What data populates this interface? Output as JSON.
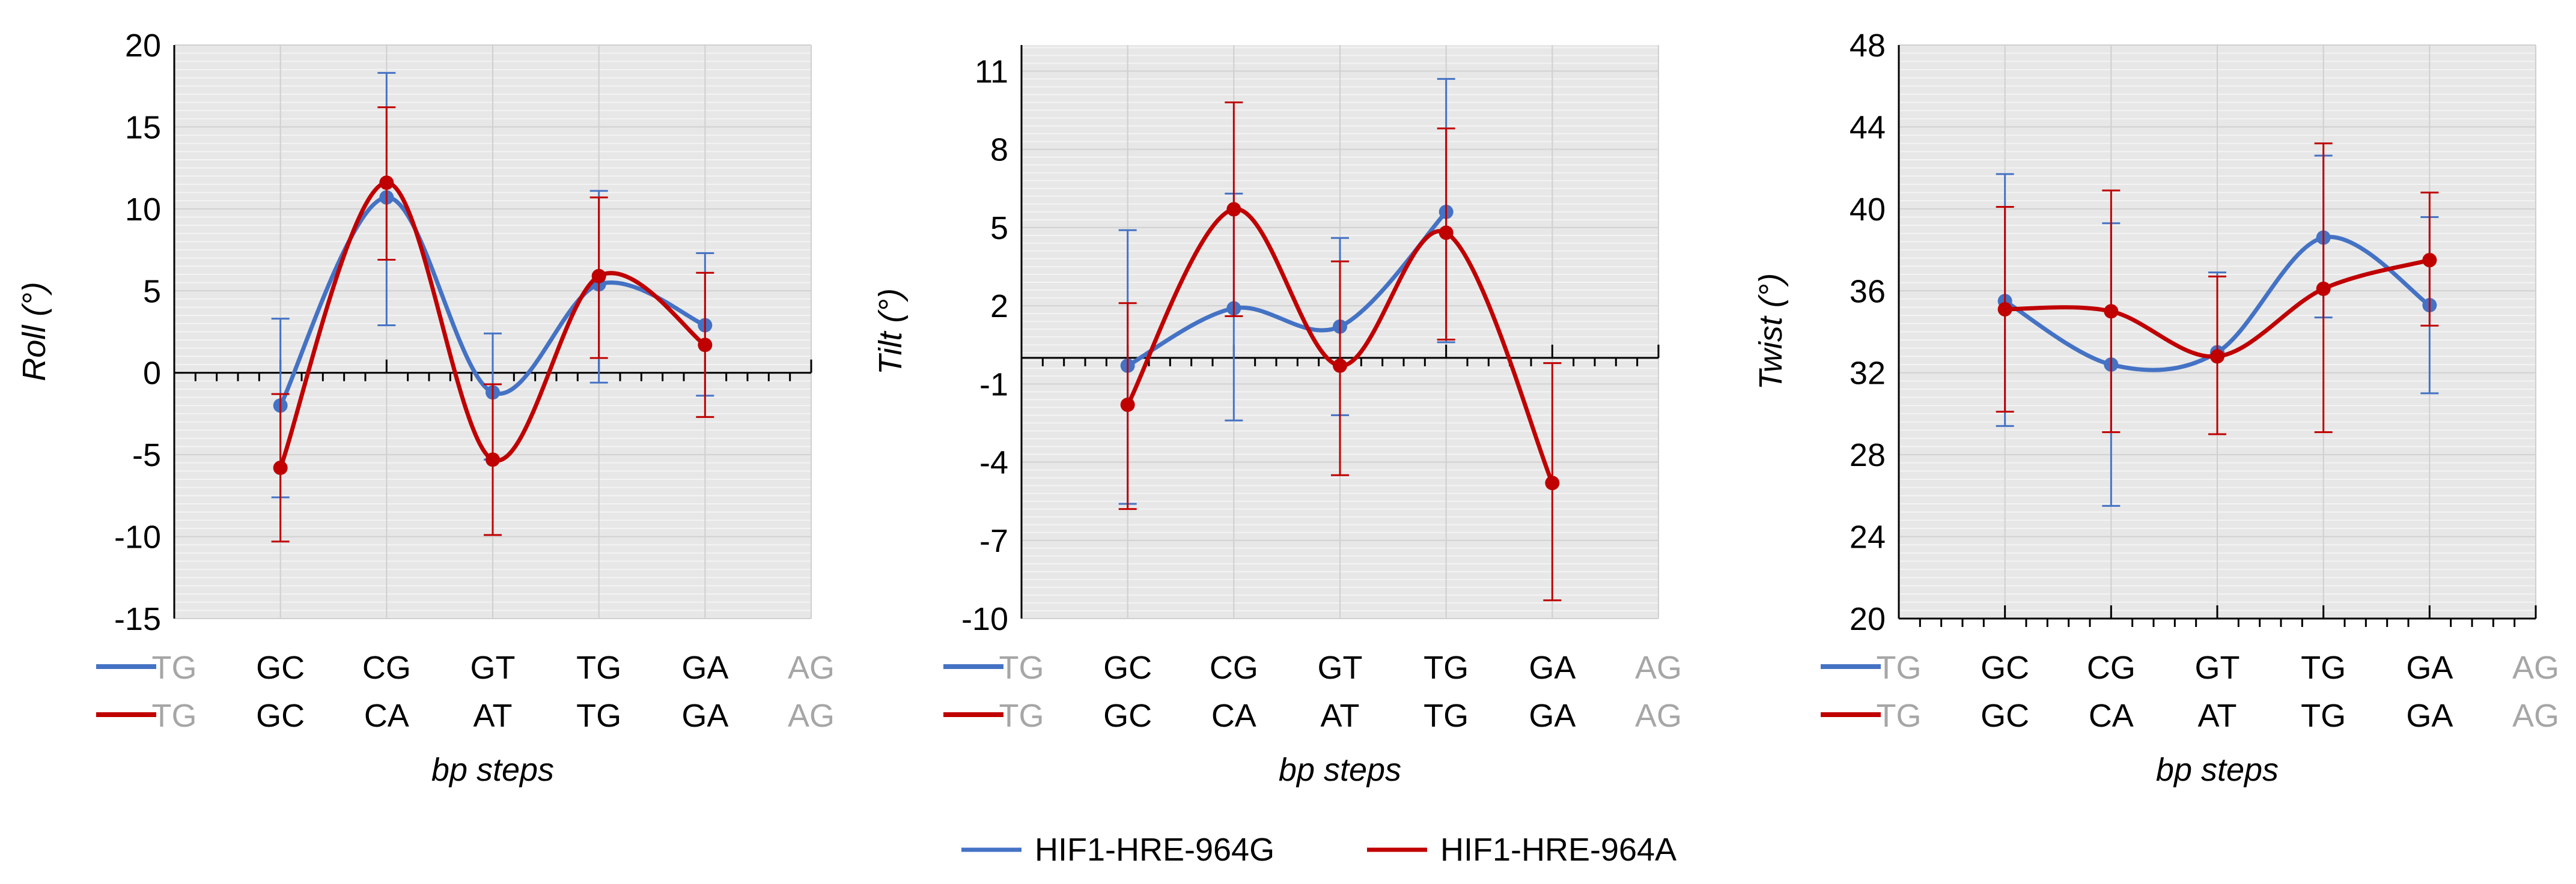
{
  "chart_data": [
    {
      "type": "line",
      "title": "",
      "ylabel": "Roll (°)",
      "xlabel": "bp steps",
      "ylim": [
        -15,
        20
      ],
      "yticks": [
        -15,
        -10,
        -5,
        0,
        5,
        10,
        15,
        20
      ],
      "grid": true,
      "smooth": true,
      "categories_rows": [
        [
          "TG",
          "GC",
          "CG",
          "GT",
          "TG",
          "GA",
          "AG"
        ],
        [
          "TG",
          "GC",
          "CA",
          "AT",
          "TG",
          "GA",
          "AG"
        ]
      ],
      "faded_categories": [
        0,
        6
      ],
      "series": [
        {
          "name": "HIF1-HRE-964G",
          "color": "#4472C4",
          "values": [
            null,
            -2.0,
            10.7,
            -1.2,
            5.4,
            2.9,
            null
          ],
          "err_low": [
            null,
            -7.6,
            2.9,
            -5.3,
            -0.6,
            -1.4,
            null
          ],
          "err_high": [
            null,
            3.3,
            18.3,
            2.4,
            11.1,
            7.3,
            null
          ]
        },
        {
          "name": "HIF1-HRE-964A",
          "color": "#C00000",
          "values": [
            null,
            -5.8,
            11.6,
            -5.3,
            5.9,
            1.7,
            null
          ],
          "err_low": [
            null,
            -10.3,
            6.9,
            -9.9,
            0.9,
            -2.7,
            null
          ],
          "err_high": [
            null,
            -1.3,
            16.2,
            -0.7,
            10.7,
            6.1,
            null
          ]
        }
      ]
    },
    {
      "type": "line",
      "title": "",
      "ylabel": "Tilt (°)",
      "xlabel": "bp steps",
      "ylim": [
        -10,
        12
      ],
      "yticks": [
        -10,
        -7,
        -4,
        -1,
        2,
        5,
        8,
        11
      ],
      "grid": true,
      "smooth": true,
      "categories_rows": [
        [
          "TG",
          "GC",
          "CG",
          "GT",
          "TG",
          "GA",
          "AG"
        ],
        [
          "TG",
          "GC",
          "CA",
          "AT",
          "TG",
          "GA",
          "AG"
        ]
      ],
      "faded_categories": [
        0,
        6
      ],
      "series": [
        {
          "name": "HIF1-HRE-964G",
          "color": "#4472C4",
          "values": [
            null,
            -0.3,
            1.9,
            1.2,
            5.6,
            null,
            null
          ],
          "err_low": [
            null,
            -5.6,
            -2.4,
            -2.2,
            0.6,
            null,
            null
          ],
          "err_high": [
            null,
            4.9,
            6.3,
            4.6,
            10.7,
            null,
            null
          ]
        },
        {
          "name": "HIF1-HRE-964A",
          "color": "#C00000",
          "values": [
            null,
            -1.8,
            5.7,
            -0.3,
            4.8,
            -4.8,
            null
          ],
          "err_low": [
            null,
            -5.8,
            1.6,
            -4.5,
            0.7,
            -9.3,
            null
          ],
          "err_high": [
            null,
            2.1,
            9.8,
            3.7,
            8.8,
            -0.2,
            null
          ]
        }
      ]
    },
    {
      "type": "line",
      "title": "",
      "ylabel": "Twist (°)",
      "xlabel": "bp steps",
      "ylim": [
        20,
        48
      ],
      "yticks": [
        20,
        24,
        28,
        32,
        36,
        40,
        44,
        48
      ],
      "grid": true,
      "smooth": true,
      "categories_rows": [
        [
          "TG",
          "GC",
          "CG",
          "GT",
          "TG",
          "GA",
          "AG"
        ],
        [
          "TG",
          "GC",
          "CA",
          "AT",
          "TG",
          "GA",
          "AG"
        ]
      ],
      "faded_categories": [
        0,
        6
      ],
      "series": [
        {
          "name": "HIF1-HRE-964G",
          "color": "#4472C4",
          "values": [
            null,
            35.5,
            32.4,
            33.0,
            38.6,
            35.3,
            null
          ],
          "err_low": [
            null,
            29.4,
            25.5,
            29.0,
            34.7,
            31.0,
            null
          ],
          "err_high": [
            null,
            41.7,
            39.3,
            36.9,
            42.6,
            39.6,
            null
          ]
        },
        {
          "name": "HIF1-HRE-964A",
          "color": "#C00000",
          "values": [
            null,
            35.1,
            35.0,
            32.8,
            36.1,
            37.5,
            null
          ],
          "err_low": [
            null,
            30.1,
            29.1,
            29.0,
            29.1,
            34.3,
            null
          ],
          "err_high": [
            null,
            40.1,
            40.9,
            36.7,
            43.2,
            40.8,
            null
          ]
        }
      ]
    }
  ],
  "legend": [
    {
      "label": "HIF1-HRE-964G",
      "color": "#4472C4"
    },
    {
      "label": "HIF1-HRE-964A",
      "color": "#C00000"
    }
  ]
}
